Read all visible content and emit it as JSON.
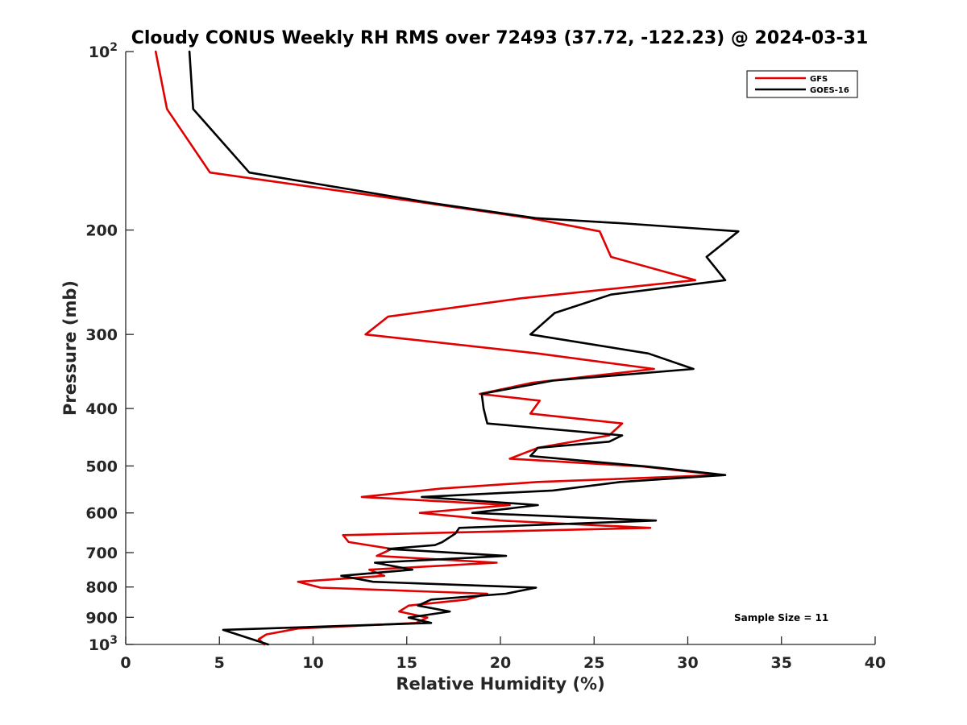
{
  "chart_data": {
    "type": "line",
    "title": "Cloudy CONUS Weekly RH RMS over 72493 (37.72, -122.23) @ 2024-03-31",
    "xlabel": "Relative Humidity (%)",
    "ylabel": "Pressure (mb)",
    "xlim": [
      0,
      40
    ],
    "ylim": [
      100,
      1000
    ],
    "yscale": "log",
    "y_reversed": true,
    "grid": false,
    "legend_position": "top-right",
    "x_ticks": [
      0,
      5,
      10,
      15,
      20,
      25,
      30,
      35,
      40
    ],
    "x_tick_labels": [
      "0",
      "5",
      "10",
      "15",
      "20",
      "25",
      "30",
      "35",
      "40"
    ],
    "y_ticks": [
      200,
      300,
      400,
      500,
      600,
      700,
      800,
      900
    ],
    "y_tick_labels": [
      "200",
      "300",
      "400",
      "500",
      "600",
      "700",
      "800",
      "900"
    ],
    "y_edge_ticks": [
      {
        "value": 100,
        "base": "10",
        "exp": "2"
      },
      {
        "value": 1000,
        "base": "10",
        "exp": "3"
      }
    ],
    "annotation": "Sample Size = 11",
    "series": [
      {
        "name": "GFS",
        "color": "#e00000",
        "points": [
          [
            1.6,
            100
          ],
          [
            2.2,
            125
          ],
          [
            4.5,
            160
          ],
          [
            16.0,
            180
          ],
          [
            21.6,
            191
          ],
          [
            25.3,
            201
          ],
          [
            25.9,
            222
          ],
          [
            30.4,
            243
          ],
          [
            21.0,
            261
          ],
          [
            14.0,
            280
          ],
          [
            12.8,
            300
          ],
          [
            22.0,
            323
          ],
          [
            28.2,
            343
          ],
          [
            21.7,
            362
          ],
          [
            18.9,
            378
          ],
          [
            22.1,
            388
          ],
          [
            21.6,
            408
          ],
          [
            26.5,
            424
          ],
          [
            25.8,
            444
          ],
          [
            22.0,
            466
          ],
          [
            20.5,
            486
          ],
          [
            27.6,
            501
          ],
          [
            31.7,
            518
          ],
          [
            22.0,
            532
          ],
          [
            16.8,
            546
          ],
          [
            12.6,
            564
          ],
          [
            20.5,
            582
          ],
          [
            15.7,
            600
          ],
          [
            20.0,
            618
          ],
          [
            28.0,
            636
          ],
          [
            11.6,
            654
          ],
          [
            11.9,
            672
          ],
          [
            14.2,
            690
          ],
          [
            13.4,
            709
          ],
          [
            19.8,
            728
          ],
          [
            13.0,
            748
          ],
          [
            13.8,
            766
          ],
          [
            9.2,
            784
          ],
          [
            10.4,
            802
          ],
          [
            19.3,
            821
          ],
          [
            18.2,
            840
          ],
          [
            15.1,
            860
          ],
          [
            14.6,
            880
          ],
          [
            16.1,
            901
          ],
          [
            15.5,
            920
          ],
          [
            9.2,
            940
          ],
          [
            7.5,
            962
          ],
          [
            7.1,
            980
          ],
          [
            7.4,
            1000
          ]
        ]
      },
      {
        "name": "GOES-16",
        "color": "#000000",
        "points": [
          [
            3.4,
            100
          ],
          [
            3.6,
            125
          ],
          [
            6.6,
            160
          ],
          [
            16.3,
            180
          ],
          [
            21.9,
            191
          ],
          [
            26.7,
            195
          ],
          [
            32.7,
            201
          ],
          [
            31.0,
            222
          ],
          [
            32.0,
            243
          ],
          [
            25.9,
            257
          ],
          [
            22.9,
            276
          ],
          [
            21.6,
            300
          ],
          [
            27.9,
            323
          ],
          [
            30.3,
            343
          ],
          [
            22.8,
            359
          ],
          [
            19.0,
            378
          ],
          [
            19.1,
            400
          ],
          [
            19.3,
            424
          ],
          [
            26.5,
            444
          ],
          [
            25.8,
            455
          ],
          [
            22.0,
            466
          ],
          [
            21.6,
            481
          ],
          [
            27.8,
            501
          ],
          [
            32.0,
            518
          ],
          [
            26.4,
            532
          ],
          [
            22.8,
            550
          ],
          [
            15.8,
            564
          ],
          [
            22.0,
            582
          ],
          [
            18.5,
            600
          ],
          [
            28.3,
            618
          ],
          [
            17.8,
            636
          ],
          [
            17.6,
            650
          ],
          [
            16.9,
            672
          ],
          [
            16.5,
            680
          ],
          [
            14.0,
            690
          ],
          [
            20.3,
            709
          ],
          [
            13.3,
            728
          ],
          [
            15.3,
            748
          ],
          [
            11.5,
            766
          ],
          [
            13.2,
            784
          ],
          [
            21.9,
            802
          ],
          [
            20.3,
            821
          ],
          [
            16.3,
            840
          ],
          [
            15.6,
            860
          ],
          [
            17.3,
            880
          ],
          [
            15.1,
            901
          ],
          [
            16.3,
            920
          ],
          [
            5.2,
            945
          ],
          [
            7.6,
            1000
          ]
        ]
      }
    ]
  }
}
